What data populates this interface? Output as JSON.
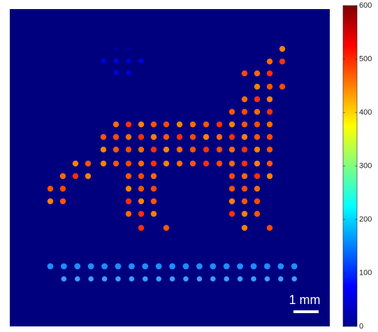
{
  "colorbar": {
    "ticks": [
      0,
      100,
      200,
      300,
      400,
      500,
      600
    ],
    "lim": [
      0,
      600
    ]
  },
  "scale_bar": {
    "label": "1 mm"
  }
}
